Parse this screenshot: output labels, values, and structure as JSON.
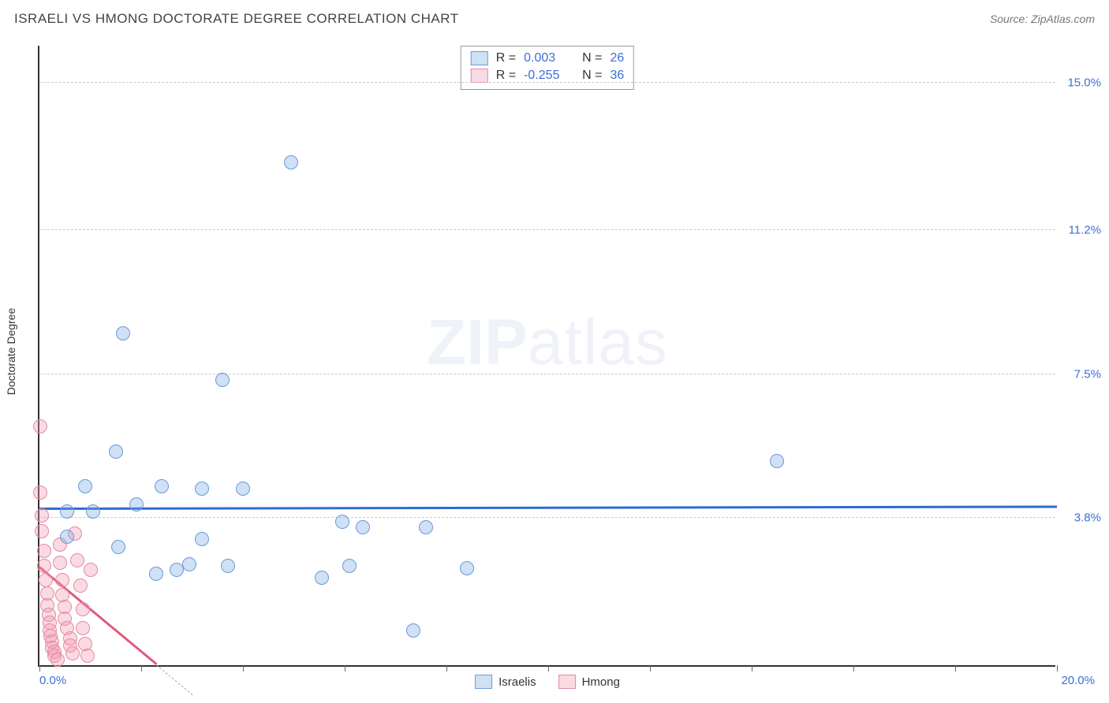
{
  "header": {
    "title": "ISRAELI VS HMONG DOCTORATE DEGREE CORRELATION CHART",
    "source": "Source: ZipAtlas.com"
  },
  "watermark": {
    "bold": "ZIP",
    "light": "atlas"
  },
  "chart": {
    "type": "scatter",
    "background_color": "#ffffff",
    "grid_color": "#cccccc",
    "axis_color": "#333333",
    "y_axis_title": "Doctorate Degree",
    "y_axis_title_fontsize": 14,
    "xlim": [
      0.0,
      20.0
    ],
    "ylim": [
      0.0,
      16.0
    ],
    "x_ticks": [
      0.0,
      2.0,
      4.0,
      6.0,
      8.0,
      10.0,
      12.0,
      14.0,
      16.0,
      18.0,
      20.0
    ],
    "x_min_label": "0.0%",
    "x_max_label": "20.0%",
    "y_grid": [
      {
        "value": 3.8,
        "label": "3.8%"
      },
      {
        "value": 7.5,
        "label": "7.5%"
      },
      {
        "value": 11.2,
        "label": "11.2%"
      },
      {
        "value": 15.0,
        "label": "15.0%"
      }
    ],
    "tick_label_color": "#3b6fd6",
    "tick_label_fontsize": 15,
    "marker_radius": 9,
    "marker_border_width": 1.5,
    "trend_line_width": 3,
    "series": [
      {
        "name": "Israelis",
        "fill_color": "rgba(120,165,225,0.35)",
        "stroke_color": "#6a9bd8",
        "trend_color": "#2e6bd0",
        "trend": {
          "y_start": 4.0,
          "y_end": 4.05
        },
        "points": [
          [
            0.55,
            3.3
          ],
          [
            0.55,
            3.95
          ],
          [
            0.9,
            4.6
          ],
          [
            1.05,
            3.95
          ],
          [
            1.5,
            5.5
          ],
          [
            1.55,
            3.05
          ],
          [
            1.65,
            8.55
          ],
          [
            1.9,
            4.15
          ],
          [
            2.3,
            2.35
          ],
          [
            2.4,
            4.6
          ],
          [
            2.7,
            2.45
          ],
          [
            2.95,
            2.6
          ],
          [
            3.2,
            3.25
          ],
          [
            3.2,
            4.55
          ],
          [
            3.6,
            7.35
          ],
          [
            3.7,
            2.55
          ],
          [
            4.0,
            4.55
          ],
          [
            4.95,
            12.95
          ],
          [
            5.55,
            2.25
          ],
          [
            5.95,
            3.7
          ],
          [
            6.1,
            2.55
          ],
          [
            6.35,
            3.55
          ],
          [
            7.35,
            0.9
          ],
          [
            7.6,
            3.55
          ],
          [
            8.4,
            2.5
          ],
          [
            14.5,
            5.25
          ]
        ]
      },
      {
        "name": "Hmong",
        "fill_color": "rgba(240,150,175,0.35)",
        "stroke_color": "#e68aa4",
        "trend_color": "#e05a7e",
        "trend": {
          "y_start": 2.5,
          "y_end_at_x": 2.3,
          "y_end": 0.0
        },
        "points": [
          [
            0.02,
            6.15
          ],
          [
            0.02,
            4.45
          ],
          [
            0.05,
            3.85
          ],
          [
            0.05,
            3.45
          ],
          [
            0.1,
            2.95
          ],
          [
            0.1,
            2.55
          ],
          [
            0.12,
            2.2
          ],
          [
            0.15,
            1.85
          ],
          [
            0.15,
            1.55
          ],
          [
            0.18,
            1.3
          ],
          [
            0.2,
            1.1
          ],
          [
            0.2,
            0.9
          ],
          [
            0.22,
            0.75
          ],
          [
            0.25,
            0.6
          ],
          [
            0.25,
            0.45
          ],
          [
            0.3,
            0.35
          ],
          [
            0.3,
            0.25
          ],
          [
            0.35,
            0.15
          ],
          [
            0.4,
            3.1
          ],
          [
            0.4,
            2.65
          ],
          [
            0.45,
            2.2
          ],
          [
            0.45,
            1.8
          ],
          [
            0.5,
            1.5
          ],
          [
            0.5,
            1.2
          ],
          [
            0.55,
            0.95
          ],
          [
            0.6,
            0.7
          ],
          [
            0.6,
            0.5
          ],
          [
            0.65,
            0.3
          ],
          [
            0.7,
            3.4
          ],
          [
            0.75,
            2.7
          ],
          [
            0.8,
            2.05
          ],
          [
            0.85,
            1.45
          ],
          [
            0.85,
            0.95
          ],
          [
            0.9,
            0.55
          ],
          [
            0.95,
            0.25
          ],
          [
            1.0,
            2.45
          ]
        ]
      }
    ],
    "legend_top": {
      "rows": [
        {
          "swatch_series": 0,
          "r_label": "R =",
          "r_value": "0.003",
          "n_label": "N =",
          "n_value": "26"
        },
        {
          "swatch_series": 1,
          "r_label": "R =",
          "r_value": "-0.255",
          "n_label": "N =",
          "n_value": "36"
        }
      ]
    },
    "legend_bottom": [
      {
        "series": 0,
        "label": "Israelis"
      },
      {
        "series": 1,
        "label": "Hmong"
      }
    ]
  }
}
